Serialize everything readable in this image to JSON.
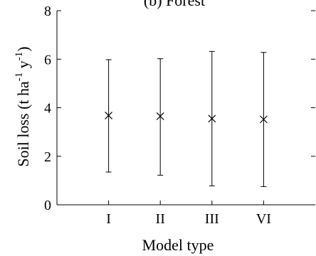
{
  "chart_data": {
    "type": "scatter",
    "title": "(b) Forest",
    "xlabel": "Model type",
    "ylabel_main": "Soil loss (t ha",
    "ylabel_exp1": "-1",
    "ylabel_mid": " y",
    "ylabel_exp2": "-1",
    "ylabel_end": ")",
    "categories": [
      "I",
      "II",
      "III",
      "VI"
    ],
    "series": [
      {
        "marker": "x",
        "values": [
          3.68,
          3.65,
          3.55,
          3.52
        ],
        "error_upper": [
          5.98,
          6.02,
          6.32,
          6.28
        ],
        "error_lower": [
          1.35,
          1.22,
          0.78,
          0.75
        ]
      }
    ],
    "ylim": [
      0,
      8
    ],
    "yticks": [
      0,
      2,
      4,
      6,
      8
    ],
    "grid": false,
    "legend": "none"
  }
}
